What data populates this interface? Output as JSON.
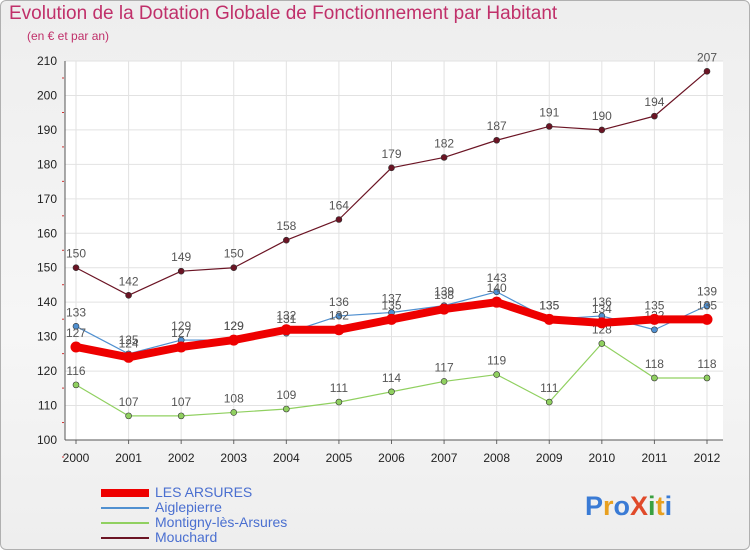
{
  "title": "Evolution de la Dotation Globale de Fonctionnement par Habitant",
  "subtitle": "(en € et par an)",
  "logo": {
    "text": "ProXiti",
    "letters": [
      "P",
      "r",
      "o",
      "X",
      "i",
      "t",
      "i"
    ],
    "colors": [
      "#3a7bd5",
      "#e8a020",
      "#3a7bd5",
      "#e04a2a",
      "#3aa040",
      "#e8a020",
      "#3a7bd5"
    ]
  },
  "chart_data": {
    "type": "line",
    "title": "Evolution de la Dotation Globale de Fonctionnement par Habitant",
    "subtitle": "(en € et par an)",
    "xlabel": "",
    "ylabel": "",
    "x": [
      "2000",
      "2001",
      "2002",
      "2003",
      "2004",
      "2005",
      "2006",
      "2007",
      "2008",
      "2009",
      "2010",
      "2011",
      "2012"
    ],
    "ylim": [
      100,
      210
    ],
    "yticks": [
      "100",
      "110",
      "120",
      "130",
      "140",
      "150",
      "160",
      "170",
      "180",
      "190",
      "200",
      "210"
    ],
    "grid": true,
    "legend_position": "bottom-left",
    "series": [
      {
        "name": "Mouchard",
        "color": "#6b1424",
        "width": 1.2,
        "labels": true,
        "values": [
          150,
          142,
          149,
          150,
          158,
          164,
          179,
          182,
          187,
          191,
          190,
          194,
          207
        ]
      },
      {
        "name": "Montigny-lès-Arsures",
        "color": "#90d060",
        "width": 1.2,
        "labels": true,
        "values": [
          116,
          107,
          107,
          108,
          109,
          111,
          114,
          117,
          119,
          111,
          128,
          118,
          118
        ]
      },
      {
        "name": "Aiglepierre",
        "color": "#5090d0",
        "width": 1.2,
        "labels": true,
        "values": [
          133,
          125,
          129,
          129,
          131,
          136,
          137,
          139,
          143,
          135,
          136,
          132,
          139
        ]
      },
      {
        "name": "LES ARSURES",
        "color": "#ee0000",
        "width": 8,
        "labels": true,
        "values": [
          127,
          124,
          127,
          129,
          132,
          132,
          135,
          138,
          140,
          135,
          134,
          135,
          135
        ]
      }
    ],
    "legend": [
      "LES ARSURES",
      "Aiglepierre",
      "Montigny-lès-Arsures",
      "Mouchard"
    ]
  }
}
